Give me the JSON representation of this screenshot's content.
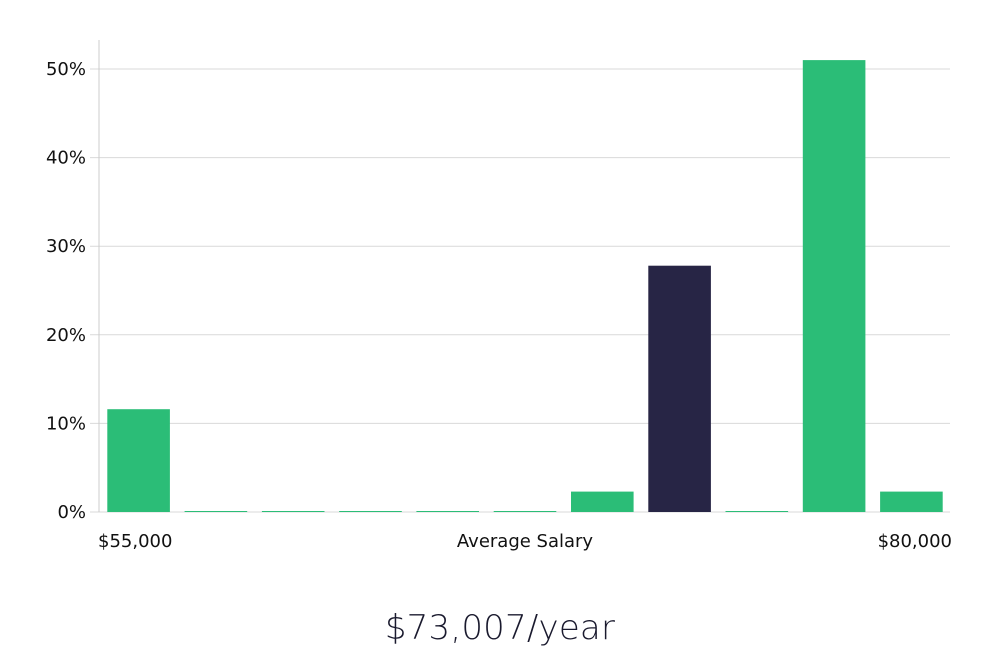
{
  "chart_data": {
    "type": "bar",
    "title": "",
    "xlabel": "Average Salary",
    "ylabel": "",
    "x_min_label": "$55,000",
    "x_max_label": "$80,000",
    "y_ticks": [
      "0%",
      "10%",
      "20%",
      "30%",
      "40%",
      "50%"
    ],
    "ylim": [
      0,
      53.5
    ],
    "values": [
      11.6,
      0.1,
      0.1,
      0.1,
      0.1,
      0.1,
      2.3,
      27.8,
      0.1,
      51.0,
      2.3
    ],
    "highlight_index": 7,
    "grid": true,
    "colors": {
      "bar": "#2bbd77",
      "highlight": "#272545",
      "grid": "#d9d9d9",
      "axis": "#cccccc"
    }
  },
  "summary": {
    "salary_text": "$73,007/year"
  }
}
